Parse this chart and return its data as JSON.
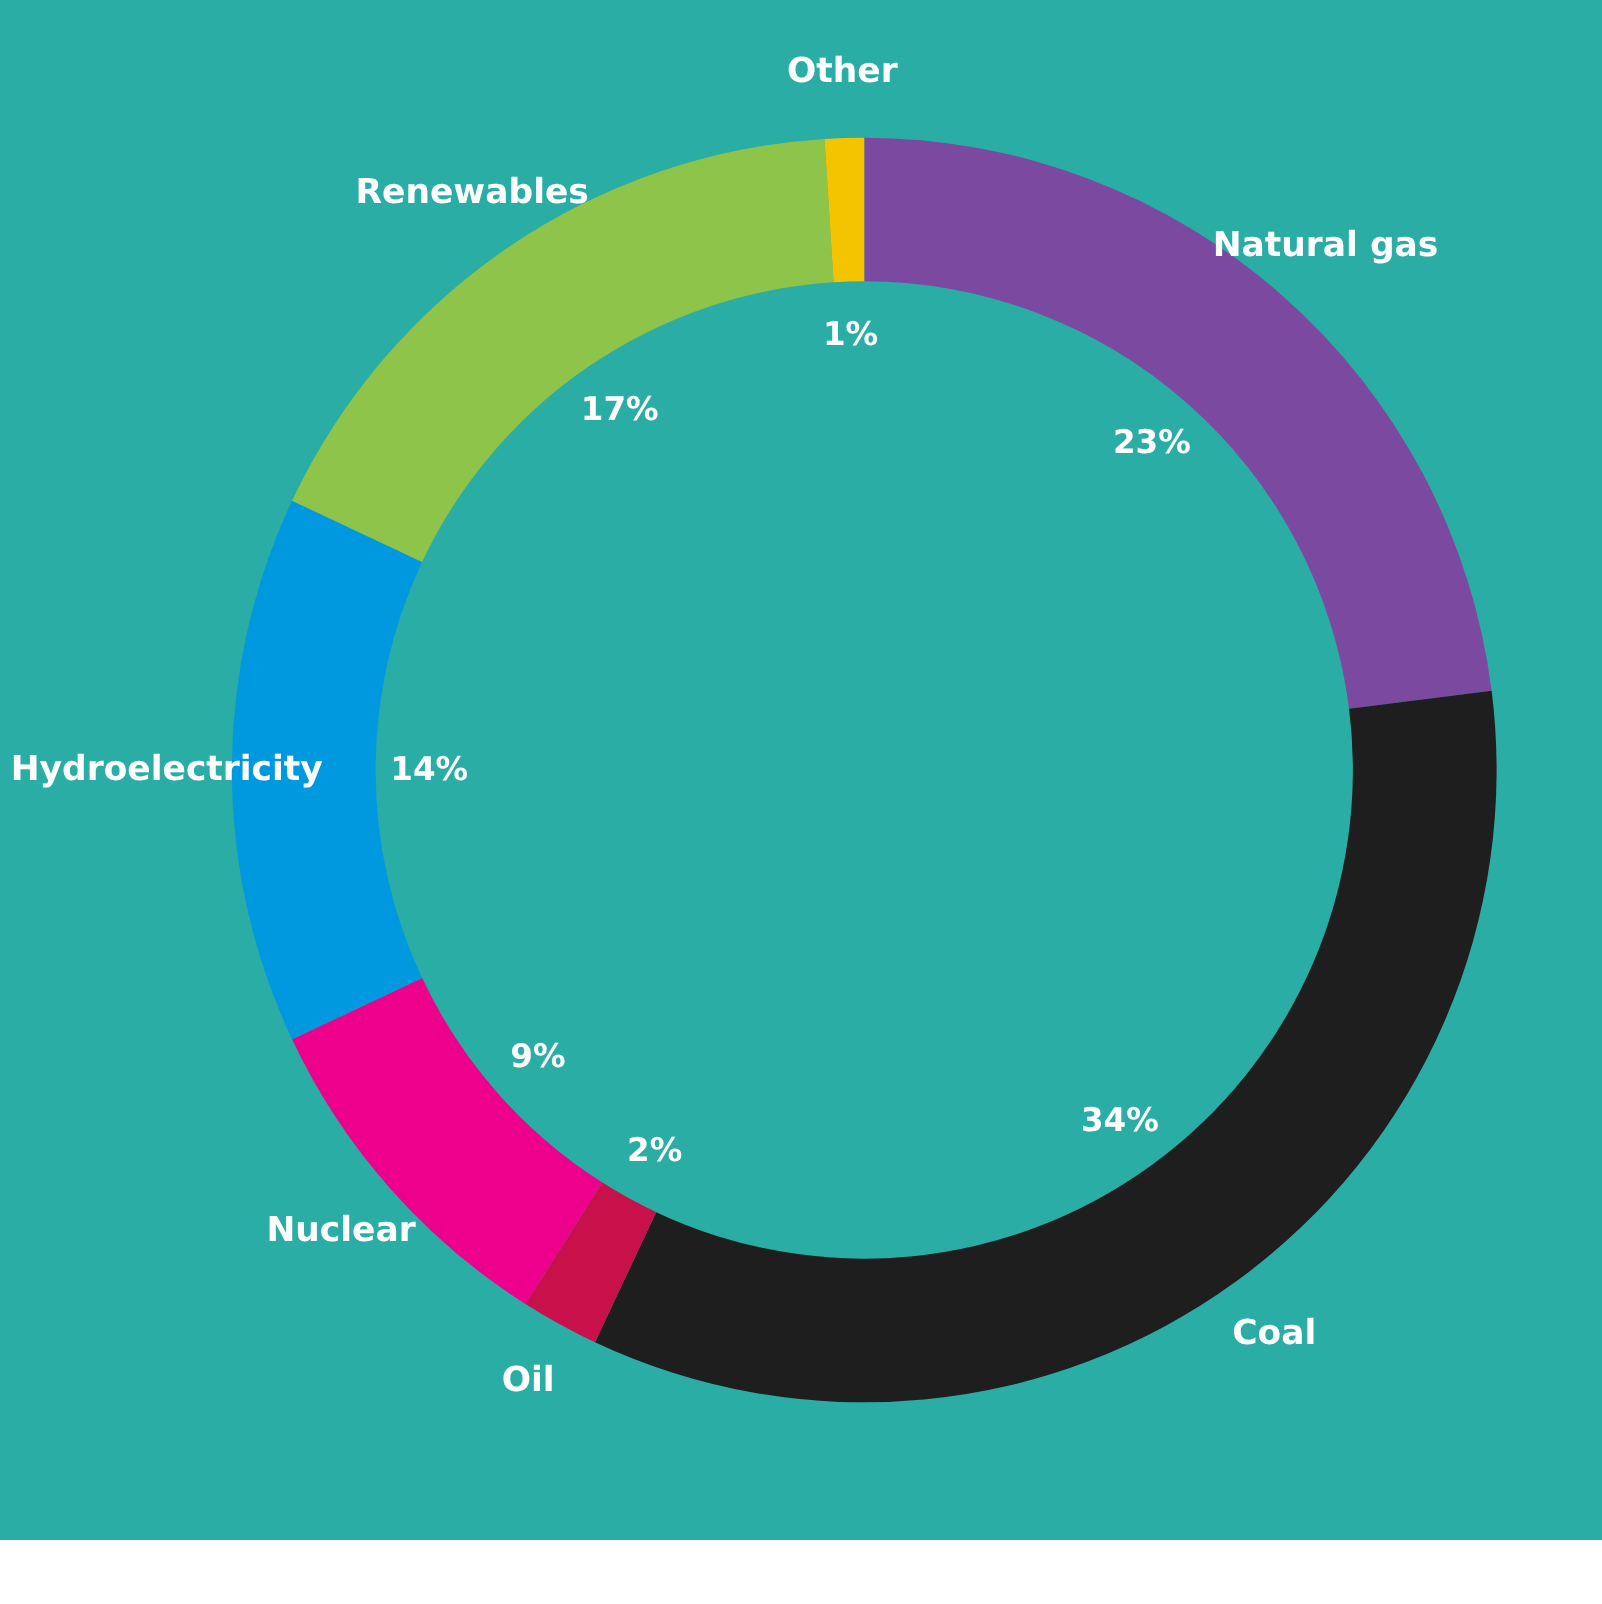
{
  "chart_data": {
    "type": "donut",
    "categories": [
      "Natural gas",
      "Coal",
      "Oil",
      "Nuclear",
      "Hydroelectricity",
      "Renewables",
      "Other"
    ],
    "values": [
      23,
      34,
      2,
      9,
      14,
      17,
      1
    ],
    "value_labels": [
      "23%",
      "34%",
      "2%",
      "9%",
      "14%",
      "17%",
      "1%"
    ],
    "colors": [
      "#7b4aa0",
      "#1e1e1e",
      "#c8104a",
      "#ec008c",
      "#0099e0",
      "#8dc449",
      "#f5c400"
    ],
    "legend": false
  }
}
